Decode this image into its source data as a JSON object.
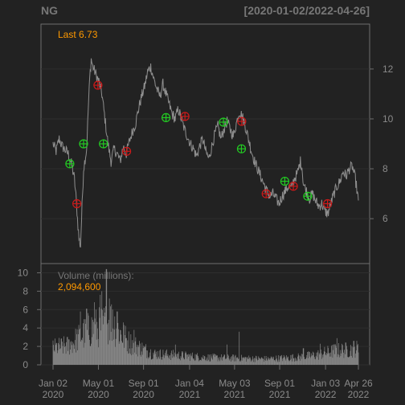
{
  "chart_data": {
    "type": "line",
    "symbol": "NG",
    "date_range_label": "[2020-01-02/2022-04-26]",
    "last_label": "Last 6.73",
    "price_ylim": [
      4.2,
      13.8
    ],
    "price_ticks": [
      "6",
      "8",
      "10",
      "12"
    ],
    "price_tick_values": [
      6,
      8,
      10,
      12
    ],
    "x_ticks": [
      {
        "line1": "Jan 02",
        "line2": "2020",
        "t": 0
      },
      {
        "line1": "May 01",
        "line2": "2020",
        "t": 0.1486
      },
      {
        "line1": "Sep 01",
        "line2": "2020",
        "t": 0.2964
      },
      {
        "line1": "Jan 04",
        "line2": "2021",
        "t": 0.4472
      },
      {
        "line1": "May 03",
        "line2": "2021",
        "t": 0.5944
      },
      {
        "line1": "Sep 01",
        "line2": "2021",
        "t": 0.7422
      },
      {
        "line1": "Jan 03",
        "line2": "2022",
        "t": 0.8924
      },
      {
        "line1": "Apr 26",
        "line2": "2022",
        "t": 1.0
      }
    ],
    "price_series": [
      [
        0,
        9.0
      ],
      [
        0.01,
        8.7
      ],
      [
        0.02,
        9.2
      ],
      [
        0.03,
        8.9
      ],
      [
        0.05,
        8.6
      ],
      [
        0.06,
        8.2
      ],
      [
        0.07,
        7.6
      ],
      [
        0.075,
        6.9
      ],
      [
        0.08,
        6.0
      ],
      [
        0.085,
        5.2
      ],
      [
        0.09,
        4.9
      ],
      [
        0.095,
        6.5
      ],
      [
        0.1,
        8.0
      ],
      [
        0.11,
        8.8
      ],
      [
        0.115,
        10.3
      ],
      [
        0.12,
        11.6
      ],
      [
        0.125,
        12.4
      ],
      [
        0.13,
        12.1
      ],
      [
        0.14,
        11.8
      ],
      [
        0.15,
        11.5
      ],
      [
        0.16,
        11.0
      ],
      [
        0.17,
        10.0
      ],
      [
        0.18,
        9.0
      ],
      [
        0.19,
        8.3
      ],
      [
        0.2,
        8.8
      ],
      [
        0.21,
        8.6
      ],
      [
        0.22,
        8.3
      ],
      [
        0.23,
        8.9
      ],
      [
        0.24,
        8.6
      ],
      [
        0.25,
        9.1
      ],
      [
        0.26,
        9.5
      ],
      [
        0.27,
        9.8
      ],
      [
        0.28,
        10.4
      ],
      [
        0.29,
        10.9
      ],
      [
        0.3,
        11.3
      ],
      [
        0.31,
        11.9
      ],
      [
        0.32,
        12.1
      ],
      [
        0.33,
        11.6
      ],
      [
        0.34,
        11.2
      ],
      [
        0.35,
        10.9
      ],
      [
        0.36,
        11.4
      ],
      [
        0.37,
        11.0
      ],
      [
        0.38,
        10.6
      ],
      [
        0.39,
        10.2
      ],
      [
        0.4,
        10.0
      ],
      [
        0.41,
        10.4
      ],
      [
        0.42,
        10.0
      ],
      [
        0.43,
        9.6
      ],
      [
        0.44,
        9.3
      ],
      [
        0.45,
        9.0
      ],
      [
        0.46,
        8.8
      ],
      [
        0.47,
        8.5
      ],
      [
        0.48,
        8.9
      ],
      [
        0.49,
        9.2
      ],
      [
        0.5,
        8.7
      ],
      [
        0.51,
        8.4
      ],
      [
        0.52,
        8.9
      ],
      [
        0.53,
        9.4
      ],
      [
        0.54,
        9.7
      ],
      [
        0.55,
        9.2
      ],
      [
        0.56,
        9.6
      ],
      [
        0.57,
        9.9
      ],
      [
        0.58,
        9.6
      ],
      [
        0.59,
        9.3
      ],
      [
        0.6,
        9.8
      ],
      [
        0.61,
        10.3
      ],
      [
        0.62,
        10.1
      ],
      [
        0.63,
        9.7
      ],
      [
        0.64,
        9.2
      ],
      [
        0.65,
        8.7
      ],
      [
        0.66,
        8.3
      ],
      [
        0.67,
        8.0
      ],
      [
        0.68,
        7.7
      ],
      [
        0.69,
        7.4
      ],
      [
        0.7,
        7.1
      ],
      [
        0.71,
        6.9
      ],
      [
        0.72,
        7.0
      ],
      [
        0.73,
        6.8
      ],
      [
        0.74,
        6.6
      ],
      [
        0.75,
        6.9
      ],
      [
        0.76,
        7.1
      ],
      [
        0.77,
        7.3
      ],
      [
        0.78,
        7.2
      ],
      [
        0.79,
        7.6
      ],
      [
        0.8,
        7.8
      ],
      [
        0.81,
        8.3
      ],
      [
        0.815,
        8.1
      ],
      [
        0.82,
        7.4
      ],
      [
        0.83,
        7.1
      ],
      [
        0.84,
        6.8
      ],
      [
        0.85,
        7.0
      ],
      [
        0.86,
        6.7
      ],
      [
        0.87,
        6.5
      ],
      [
        0.88,
        6.6
      ],
      [
        0.89,
        6.3
      ],
      [
        0.9,
        6.2
      ],
      [
        0.91,
        6.6
      ],
      [
        0.92,
        7.0
      ],
      [
        0.93,
        7.3
      ],
      [
        0.94,
        7.5
      ],
      [
        0.95,
        7.9
      ],
      [
        0.96,
        7.7
      ],
      [
        0.97,
        8.0
      ],
      [
        0.98,
        8.1
      ],
      [
        0.99,
        7.6
      ],
      [
        1.0,
        6.73
      ]
    ],
    "buy_markers": [
      [
        0.055,
        8.2
      ],
      [
        0.1,
        9.0
      ],
      [
        0.165,
        9.0
      ],
      [
        0.37,
        10.05
      ],
      [
        0.558,
        9.87
      ],
      [
        0.617,
        8.8
      ],
      [
        0.759,
        7.5
      ],
      [
        0.834,
        6.9
      ]
    ],
    "sell_markers": [
      [
        0.078,
        6.6
      ],
      [
        0.147,
        11.35
      ],
      [
        0.241,
        8.7
      ],
      [
        0.432,
        10.1
      ],
      [
        0.618,
        9.9
      ],
      [
        0.698,
        7.0
      ],
      [
        0.787,
        7.3
      ],
      [
        0.899,
        6.6
      ]
    ],
    "volume_label": "Volume (millions):",
    "volume_value": "2,094,600",
    "volume_ylim": [
      0,
      11
    ],
    "volume_ticks": [
      "0",
      "2",
      "4",
      "6",
      "8",
      "10"
    ],
    "volume_tick_values": [
      0,
      2,
      4,
      6,
      8,
      10
    ],
    "volume_profile": [
      [
        0,
        2.3
      ],
      [
        0.05,
        2.6
      ],
      [
        0.09,
        3.8
      ],
      [
        0.12,
        4.8
      ],
      [
        0.16,
        5.2
      ],
      [
        0.19,
        6.0
      ],
      [
        0.22,
        4.3
      ],
      [
        0.25,
        3.0
      ],
      [
        0.29,
        2.2
      ],
      [
        0.33,
        1.5
      ],
      [
        0.4,
        1.3
      ],
      [
        0.5,
        1.0
      ],
      [
        0.6,
        0.9
      ],
      [
        0.7,
        0.8
      ],
      [
        0.8,
        1.0
      ],
      [
        0.86,
        1.3
      ],
      [
        0.92,
        1.9
      ],
      [
        0.96,
        2.0
      ],
      [
        1.0,
        2.2
      ]
    ],
    "volume_peaks": [
      [
        0.09,
        5.8
      ],
      [
        0.11,
        6.1
      ],
      [
        0.135,
        6.8
      ],
      [
        0.155,
        7.6
      ],
      [
        0.16,
        8.0
      ],
      [
        0.175,
        10.4
      ],
      [
        0.185,
        7.2
      ],
      [
        0.195,
        6.0
      ],
      [
        0.21,
        5.8
      ],
      [
        0.23,
        4.6
      ],
      [
        0.265,
        3.8
      ],
      [
        0.4,
        2.2
      ],
      [
        0.57,
        2.2
      ],
      [
        0.61,
        3.6
      ],
      [
        0.82,
        1.8
      ],
      [
        0.875,
        2.3
      ],
      [
        0.93,
        2.9
      ],
      [
        0.985,
        2.6
      ]
    ],
    "colors": {
      "background": "#222222",
      "panel_border": "#6e6e6e",
      "grid": "#2e2e2e",
      "price_line": "#8f8f8f",
      "volume": "#8a8a8a",
      "axis_text": "#8a8a8a",
      "title": "#777777",
      "accent": "#ff9900",
      "buy": "#22cc22",
      "sell": "#cc1a1a"
    }
  }
}
